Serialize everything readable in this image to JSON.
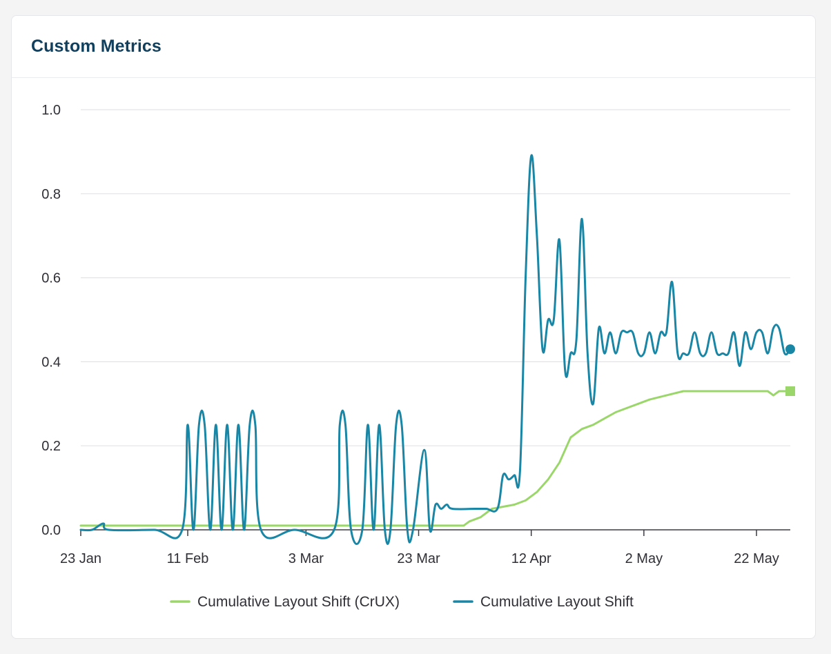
{
  "card": {
    "title": "Custom Metrics"
  },
  "colors": {
    "crux": "#9bd66a",
    "cls": "#1a86a5",
    "grid": "#e3e3e6",
    "text": "#2f2f35",
    "title": "#113f5e"
  },
  "chart_data": {
    "type": "line",
    "title": "",
    "xlabel": "",
    "ylabel": "",
    "x_axis": {
      "type": "date",
      "range": [
        "2024-01-23",
        "2024-05-28"
      ],
      "ticks": [
        {
          "date": "2024-01-23",
          "label": "23 Jan"
        },
        {
          "date": "2024-02-11",
          "label": "11 Feb"
        },
        {
          "date": "2024-03-03",
          "label": "3 Mar"
        },
        {
          "date": "2024-03-23",
          "label": "23 Mar"
        },
        {
          "date": "2024-04-12",
          "label": "12 Apr"
        },
        {
          "date": "2024-05-02",
          "label": "2 May"
        },
        {
          "date": "2024-05-22",
          "label": "22 May"
        }
      ]
    },
    "y_axis": {
      "range": [
        0,
        1
      ],
      "ticks": [
        {
          "value": 0,
          "label": "0.0"
        },
        {
          "value": 0.2,
          "label": "0.2"
        },
        {
          "value": 0.4,
          "label": "0.4"
        },
        {
          "value": 0.6,
          "label": "0.6"
        },
        {
          "value": 0.8,
          "label": "0.8"
        },
        {
          "value": 1,
          "label": "1.0"
        }
      ]
    },
    "grid": true,
    "legend": "bottom-center",
    "series": [
      {
        "name": "Cumulative Layout Shift (CrUX)",
        "marker": "square",
        "points": [
          [
            "2024-01-23",
            0.01
          ],
          [
            "2024-02-15",
            0.01
          ],
          [
            "2024-03-10",
            0.01
          ],
          [
            "2024-03-31",
            0.01
          ],
          [
            "2024-04-01",
            0.02
          ],
          [
            "2024-04-03",
            0.03
          ],
          [
            "2024-04-05",
            0.05
          ],
          [
            "2024-04-07",
            0.055
          ],
          [
            "2024-04-09",
            0.06
          ],
          [
            "2024-04-11",
            0.07
          ],
          [
            "2024-04-13",
            0.09
          ],
          [
            "2024-04-15",
            0.12
          ],
          [
            "2024-04-17",
            0.16
          ],
          [
            "2024-04-19",
            0.22
          ],
          [
            "2024-04-21",
            0.24
          ],
          [
            "2024-04-23",
            0.25
          ],
          [
            "2024-04-25",
            0.265
          ],
          [
            "2024-04-27",
            0.28
          ],
          [
            "2024-04-29",
            0.29
          ],
          [
            "2024-05-01",
            0.3
          ],
          [
            "2024-05-03",
            0.31
          ],
          [
            "2024-05-06",
            0.32
          ],
          [
            "2024-05-09",
            0.33
          ],
          [
            "2024-05-24",
            0.33
          ],
          [
            "2024-05-25",
            0.32
          ],
          [
            "2024-05-26",
            0.33
          ],
          [
            "2024-05-28",
            0.33
          ]
        ]
      },
      {
        "name": "Cumulative Layout Shift",
        "marker": "circle",
        "points": [
          [
            "2024-01-23",
            0.0
          ],
          [
            "2024-01-25",
            0.0
          ],
          [
            "2024-01-27",
            0.015
          ],
          [
            "2024-01-28",
            0.0
          ],
          [
            "2024-02-05",
            0.0
          ],
          [
            "2024-02-10",
            0.0
          ],
          [
            "2024-02-11",
            0.25
          ],
          [
            "2024-02-12",
            0.0
          ],
          [
            "2024-02-13",
            0.25
          ],
          [
            "2024-02-14",
            0.25
          ],
          [
            "2024-02-15",
            0.0
          ],
          [
            "2024-02-16",
            0.25
          ],
          [
            "2024-02-17",
            0.0
          ],
          [
            "2024-02-18",
            0.25
          ],
          [
            "2024-02-19",
            0.0
          ],
          [
            "2024-02-20",
            0.25
          ],
          [
            "2024-02-21",
            0.0
          ],
          [
            "2024-02-22",
            0.25
          ],
          [
            "2024-02-23",
            0.25
          ],
          [
            "2024-02-24",
            0.0
          ],
          [
            "2024-03-01",
            0.0
          ],
          [
            "2024-03-08",
            0.0
          ],
          [
            "2024-03-09",
            0.25
          ],
          [
            "2024-03-10",
            0.25
          ],
          [
            "2024-03-11",
            0.0
          ],
          [
            "2024-03-13",
            0.0
          ],
          [
            "2024-03-14",
            0.25
          ],
          [
            "2024-03-15",
            0.0
          ],
          [
            "2024-03-16",
            0.25
          ],
          [
            "2024-03-17",
            0.0
          ],
          [
            "2024-03-18",
            0.0
          ],
          [
            "2024-03-19",
            0.25
          ],
          [
            "2024-03-20",
            0.25
          ],
          [
            "2024-03-21",
            0.0
          ],
          [
            "2024-03-22",
            0.0
          ],
          [
            "2024-03-24",
            0.19
          ],
          [
            "2024-03-25",
            0.0
          ],
          [
            "2024-03-26",
            0.06
          ],
          [
            "2024-03-27",
            0.05
          ],
          [
            "2024-03-28",
            0.06
          ],
          [
            "2024-03-29",
            0.05
          ],
          [
            "2024-04-02",
            0.05
          ],
          [
            "2024-04-04",
            0.05
          ],
          [
            "2024-04-06",
            0.05
          ],
          [
            "2024-04-07",
            0.13
          ],
          [
            "2024-04-08",
            0.12
          ],
          [
            "2024-04-09",
            0.13
          ],
          [
            "2024-04-10",
            0.14
          ],
          [
            "2024-04-11",
            0.6
          ],
          [
            "2024-04-12",
            0.89
          ],
          [
            "2024-04-13",
            0.7
          ],
          [
            "2024-04-14",
            0.43
          ],
          [
            "2024-04-15",
            0.5
          ],
          [
            "2024-04-16",
            0.5
          ],
          [
            "2024-04-17",
            0.69
          ],
          [
            "2024-04-18",
            0.38
          ],
          [
            "2024-04-19",
            0.42
          ],
          [
            "2024-04-20",
            0.45
          ],
          [
            "2024-04-21",
            0.74
          ],
          [
            "2024-04-22",
            0.42
          ],
          [
            "2024-04-23",
            0.3
          ],
          [
            "2024-04-24",
            0.48
          ],
          [
            "2024-04-25",
            0.42
          ],
          [
            "2024-04-26",
            0.47
          ],
          [
            "2024-04-27",
            0.42
          ],
          [
            "2024-04-28",
            0.47
          ],
          [
            "2024-04-29",
            0.47
          ],
          [
            "2024-04-30",
            0.47
          ],
          [
            "2024-05-01",
            0.42
          ],
          [
            "2024-05-02",
            0.42
          ],
          [
            "2024-05-03",
            0.47
          ],
          [
            "2024-05-04",
            0.42
          ],
          [
            "2024-05-05",
            0.47
          ],
          [
            "2024-05-06",
            0.47
          ],
          [
            "2024-05-07",
            0.59
          ],
          [
            "2024-05-08",
            0.42
          ],
          [
            "2024-05-09",
            0.42
          ],
          [
            "2024-05-10",
            0.42
          ],
          [
            "2024-05-11",
            0.47
          ],
          [
            "2024-05-12",
            0.42
          ],
          [
            "2024-05-13",
            0.42
          ],
          [
            "2024-05-14",
            0.47
          ],
          [
            "2024-05-15",
            0.42
          ],
          [
            "2024-05-16",
            0.42
          ],
          [
            "2024-05-17",
            0.42
          ],
          [
            "2024-05-18",
            0.47
          ],
          [
            "2024-05-19",
            0.39
          ],
          [
            "2024-05-20",
            0.47
          ],
          [
            "2024-05-21",
            0.43
          ],
          [
            "2024-05-22",
            0.47
          ],
          [
            "2024-05-23",
            0.47
          ],
          [
            "2024-05-24",
            0.42
          ],
          [
            "2024-05-25",
            0.48
          ],
          [
            "2024-05-26",
            0.48
          ],
          [
            "2024-05-27",
            0.42
          ],
          [
            "2024-05-28",
            0.43
          ]
        ]
      }
    ]
  }
}
